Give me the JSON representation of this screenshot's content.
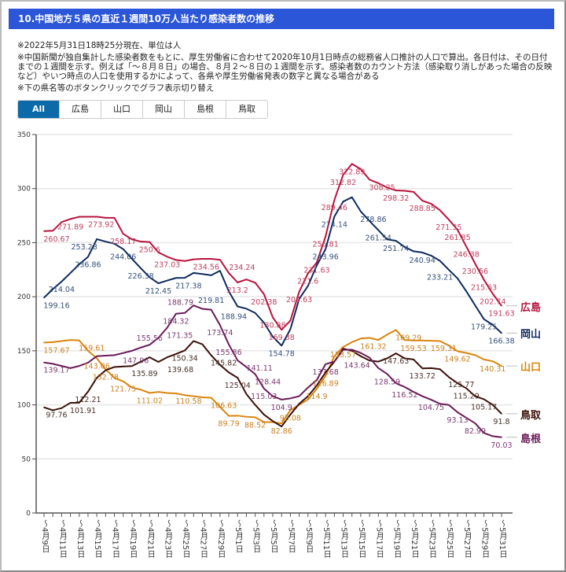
{
  "header": {
    "title": "10.中国地方５県の直近１週間10万人当たり感染者数の推移"
  },
  "notes": [
    "※2022年5月31日18時25分現在、単位は人",
    "※中国新聞が独自集計した感染者数をもとに、厚生労働省に合わせて2020年10月1日時点の総務省人口推計の人口で算出。各日付は、その日付までの１週間を示す。例えば「～８月８日」の場合、８月２～８日の１週間を示す。感染者数のカウント方法（感染取り消しがあった場合の反映など）やいつ時点の人口を使用するかによって、各県や厚生労働省発表の数字と異なる場合がある",
    "※下の県名等のボタンクリックでグラフ表示切り替え"
  ],
  "tabs": [
    {
      "label": "All",
      "active": true
    },
    {
      "label": "広島"
    },
    {
      "label": "山口"
    },
    {
      "label": "岡山"
    },
    {
      "label": "島根"
    },
    {
      "label": "鳥取"
    }
  ],
  "chart_data": {
    "type": "line",
    "ylim": [
      0,
      350
    ],
    "yticks": [
      0,
      50,
      100,
      150,
      200,
      250,
      300,
      350
    ],
    "grid": true,
    "legend": "right, at line ends",
    "x": [
      "～4月9日",
      "～4月10日",
      "～4月11日",
      "～4月12日",
      "～4月13日",
      "～4月14日",
      "～4月15日",
      "～4月16日",
      "～4月17日",
      "～4月18日",
      "～4月19日",
      "～4月20日",
      "～4月21日",
      "～4月22日",
      "～4月23日",
      "～4月24日",
      "～4月25日",
      "～4月26日",
      "～4月27日",
      "～4月28日",
      "～4月29日",
      "～4月30日",
      "～5月1日",
      "～5月2日",
      "～5月3日",
      "～5月4日",
      "～5月5日",
      "～5月6日",
      "～5月7日",
      "～5月8日",
      "～5月9日",
      "～5月10日",
      "～5月11日",
      "～5月12日",
      "～5月13日",
      "～5月14日",
      "～5月15日",
      "～5月16日",
      "～5月17日",
      "～5月18日",
      "～5月19日",
      "～5月20日",
      "～5月21日",
      "～5月22日",
      "～5月23日",
      "～5月24日",
      "～5月25日",
      "～5月26日",
      "～5月27日",
      "～5月28日",
      "～5月29日",
      "～5月30日",
      "～5月31日"
    ],
    "series": [
      {
        "name": "広島",
        "color": "#b8123c",
        "label_color": "#c0405e",
        "values": [
          260.67,
          261,
          269,
          271.89,
          273.92,
          274,
          274,
          273,
          273,
          258.17,
          253,
          251,
          250.6,
          241,
          237.03,
          234,
          233,
          234.56,
          235,
          235,
          234.24,
          222,
          213.2,
          216,
          213,
          202.38,
          180.88,
          169.38,
          178,
          204.63,
          221.6,
          231.63,
          255.81,
          289.46,
          312.82,
          322.89,
          318,
          308.25,
          305,
          301,
          298.32,
          298,
          297,
          288.85,
          286,
          280,
          271.35,
          261.85,
          246.38,
          230.56,
          215.63,
          202.74,
          191.63
        ],
        "labeled": [
          0,
          3,
          4,
          9,
          12,
          14,
          17,
          20,
          22,
          25,
          26,
          27,
          29,
          30,
          31,
          32,
          33,
          34,
          35,
          37,
          40,
          43,
          46,
          47,
          48,
          49,
          50,
          51,
          52
        ]
      },
      {
        "name": "岡山",
        "color": "#0d2a5c",
        "label_color": "#33507a",
        "values": [
          199.16,
          207,
          214.04,
          222,
          230,
          236.86,
          253.28,
          251,
          249,
          244.06,
          235,
          226.38,
          218,
          212.45,
          215,
          217.38,
          217.5,
          222,
          221,
          219.81,
          224,
          205,
          191,
          188.94,
          185,
          176,
          163,
          154.78,
          170,
          198,
          210,
          229,
          243.96,
          274.14,
          288,
          292,
          278.86,
          270,
          261.54,
          253,
          251.74,
          246,
          242,
          240.94,
          238,
          233.21,
          225,
          217,
          205,
          192,
          179.25,
          174,
          166.38
        ],
        "labeled": [
          0,
          2,
          5,
          6,
          9,
          11,
          13,
          15,
          19,
          23,
          27,
          32,
          33,
          36,
          38,
          40,
          43,
          45,
          50,
          52
        ]
      },
      {
        "name": "山口",
        "color": "#d9840c",
        "label_color": "#c98020",
        "values": [
          157.67,
          158,
          159,
          160,
          159.61,
          150,
          143.06,
          132.78,
          125,
          121.75,
          116,
          114,
          111.02,
          112,
          111,
          110.58,
          109,
          108,
          107,
          106.63,
          98,
          89.79,
          90,
          89,
          88.52,
          84,
          84,
          82.86,
          95.08,
          100,
          105,
          114.9,
          126.89,
          145,
          153.57,
          158,
          161.32,
          162,
          160,
          165,
          169.29,
          160,
          159.53,
          159.5,
          159.31,
          159,
          155,
          149.62,
          148,
          146,
          142,
          140.31,
          136
        ],
        "labeled": [
          0,
          4,
          6,
          7,
          9,
          12,
          15,
          19,
          21,
          24,
          27,
          28,
          31,
          32,
          34,
          36,
          40,
          42,
          44,
          47,
          51
        ]
      },
      {
        "name": "鳥取",
        "color": "#3a1008",
        "label_color": "#4a3028",
        "values": [
          97.76,
          95,
          97,
          101.91,
          102,
          112.21,
          125,
          132,
          135,
          135.5,
          135.89,
          140,
          144,
          139.68,
          144,
          147,
          150.34,
          159,
          156,
          145.82,
          137,
          130,
          125.04,
          110,
          100,
          91,
          85,
          80,
          91,
          101,
          108,
          118,
          130,
          140,
          152,
          150,
          145,
          141,
          140,
          143,
          147.63,
          143,
          142,
          133.72,
          134,
          133,
          125.77,
          120,
          115.29,
          108,
          105.17,
          100,
          91.8
        ],
        "labeled": [
          0,
          3,
          5,
          10,
          13,
          16,
          19,
          22,
          40,
          43,
          46,
          48,
          50,
          52
        ]
      },
      {
        "name": "島根",
        "color": "#6a1a58",
        "label_color": "#7a3a70",
        "values": [
          139.17,
          138,
          136,
          134,
          136,
          139,
          145,
          145.5,
          146,
          147.96,
          150,
          153,
          155.56,
          162,
          171.35,
          184.32,
          185,
          192,
          188.79,
          188,
          173.74,
          155.86,
          141.11,
          135,
          128.44,
          115.03,
          108,
          104.9,
          106,
          108,
          116,
          123,
          137.68,
          140,
          151,
          151,
          148,
          143.64,
          134,
          128.59,
          120,
          116.52,
          112,
          108,
          104.75,
          101,
          100,
          93.13,
          88,
          82.99,
          74,
          71,
          70.03
        ],
        "labeled": [
          0,
          9,
          12,
          14,
          15,
          18,
          20,
          21,
          22,
          24,
          25,
          27,
          32,
          37,
          39,
          41,
          44,
          47,
          49,
          52
        ]
      }
    ]
  }
}
